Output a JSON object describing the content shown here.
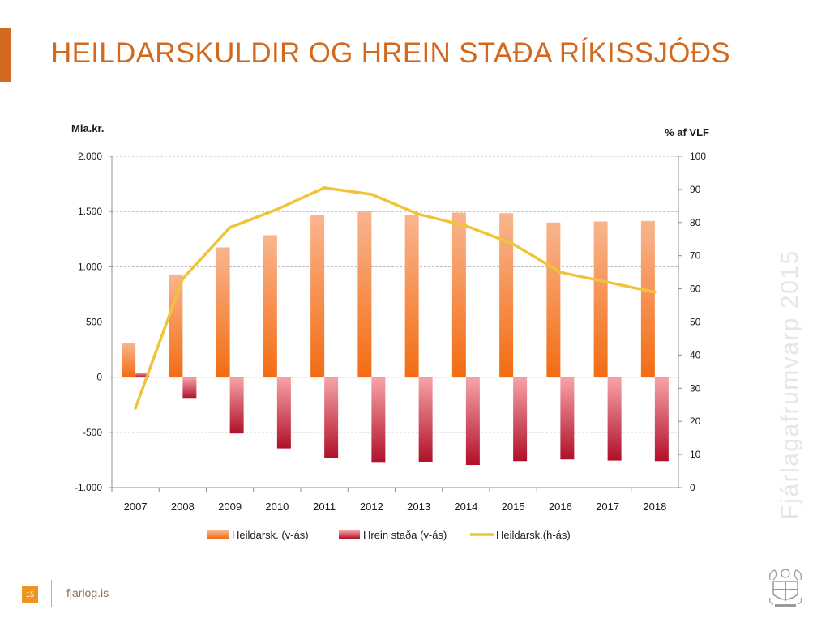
{
  "title": "HEILDARSKULDIR OG HREIN STAÐA RÍKISSJÓÐS",
  "side_text": "Fjárlagafrumvarp 2015",
  "footer": {
    "page_number": "15",
    "site": "fjarlog.is"
  },
  "colors": {
    "accent": "#d2691e",
    "bar_total_top": "#f9b58f",
    "bar_total_bottom": "#f36c12",
    "bar_net_top": "#f7a4a8",
    "bar_net_bottom": "#b0102a",
    "line": "#f0c43a",
    "grid": "#a6a6a6"
  },
  "chart_data": {
    "type": "bar",
    "left_axis_label": "Mia.kr.",
    "right_axis_label": "% af VLF",
    "categories": [
      "2007",
      "2008",
      "2009",
      "2010",
      "2011",
      "2012",
      "2013",
      "2014",
      "2015",
      "2016",
      "2017",
      "2018"
    ],
    "ylim": [
      -1000,
      2000
    ],
    "yticks": [
      -1000,
      -500,
      0,
      500,
      1000,
      1500,
      2000
    ],
    "ytick_labels": [
      "-1.000",
      "-500",
      "0",
      "500",
      "1.000",
      "1.500",
      "2.000"
    ],
    "y2lim": [
      0,
      100
    ],
    "y2ticks": [
      0,
      10,
      20,
      30,
      40,
      50,
      60,
      70,
      80,
      90,
      100
    ],
    "y2tick_labels": [
      "0",
      "10",
      "20",
      "30",
      "40",
      "50",
      "60",
      "70",
      "80",
      "90",
      "100"
    ],
    "grid": true,
    "legend_position": "bottom",
    "series": [
      {
        "name": "Heildarsk. (v-ás)",
        "kind": "bar",
        "axis": "left",
        "values": [
          310,
          930,
          1175,
          1285,
          1465,
          1500,
          1470,
          1490,
          1485,
          1400,
          1410,
          1415
        ]
      },
      {
        "name": "Hrein staða (v-ás)",
        "kind": "bar",
        "axis": "left",
        "values": [
          40,
          -195,
          -510,
          -645,
          -735,
          -775,
          -765,
          -795,
          -760,
          -745,
          -755,
          -760
        ]
      },
      {
        "name": "Heildarsk.(h-ás)",
        "kind": "line",
        "axis": "right",
        "values": [
          24,
          63,
          78.5,
          84,
          90.5,
          88.5,
          82.5,
          79,
          73.5,
          65,
          62,
          59
        ]
      }
    ]
  }
}
